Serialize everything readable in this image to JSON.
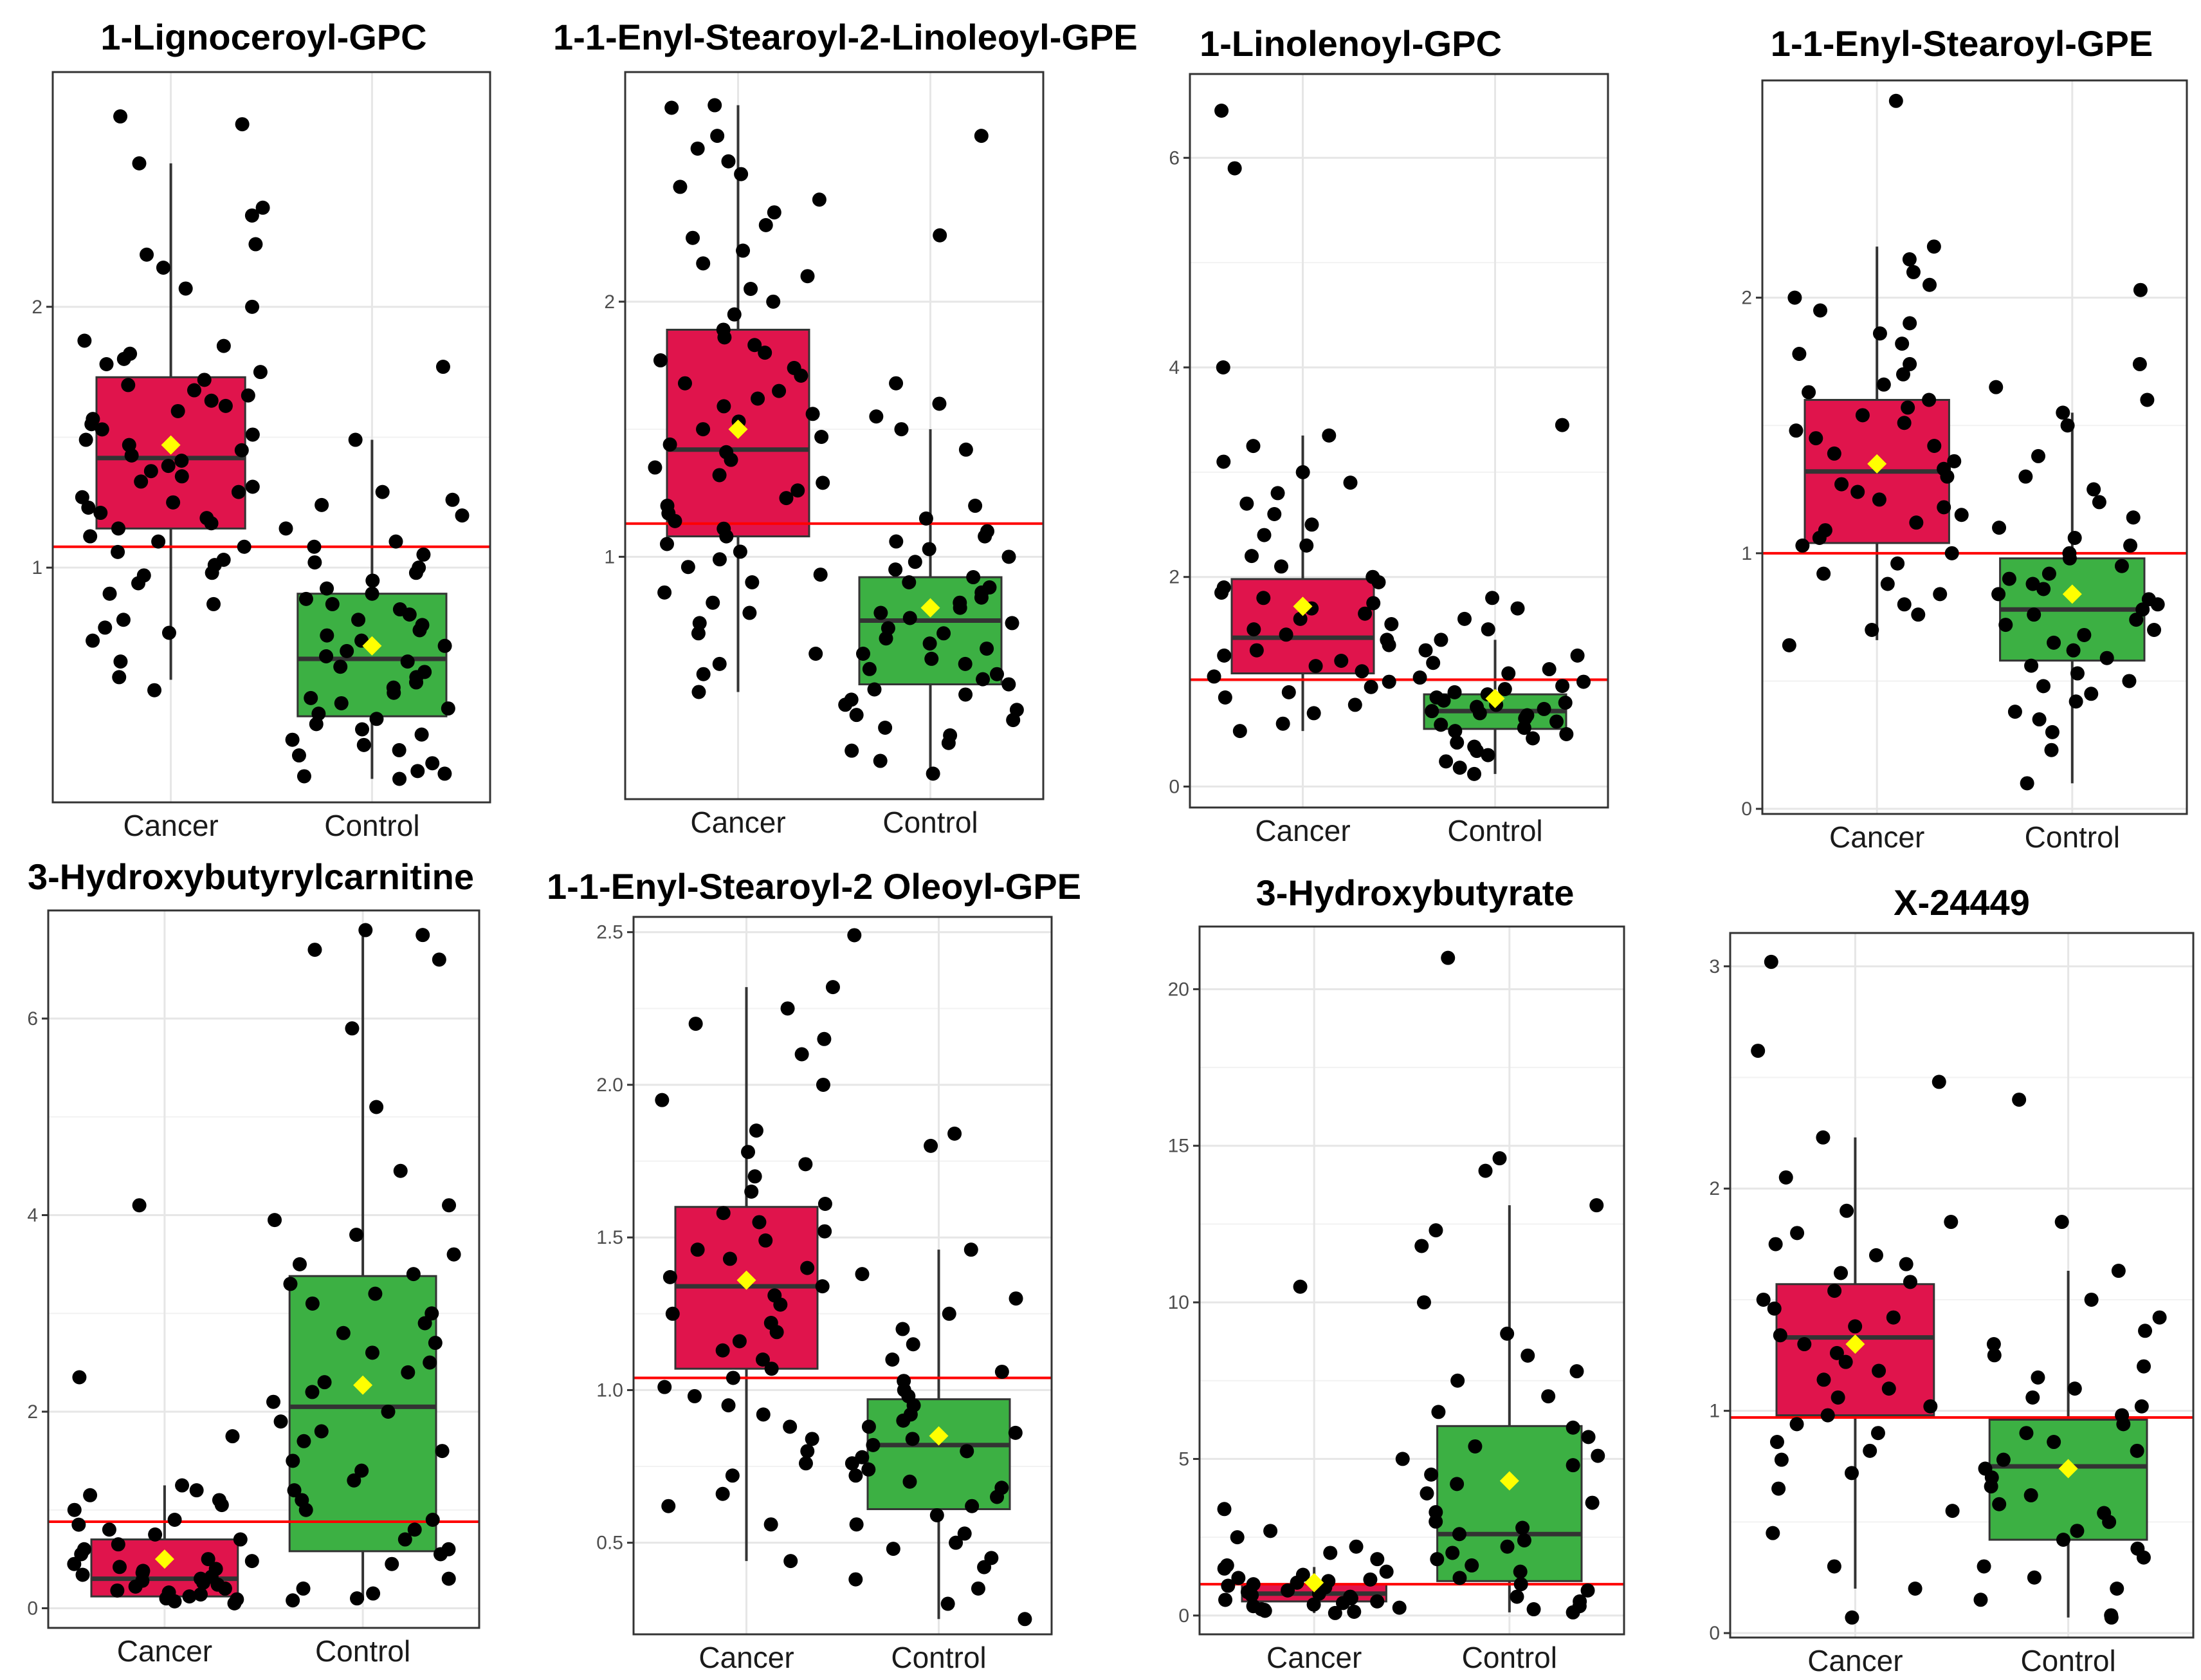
{
  "figure": {
    "background": "#ffffff"
  },
  "style": {
    "cancer_fill": "#E0144C",
    "control_fill": "#3CB043",
    "mean_color": "#FFFF00",
    "threshold_color": "#FF0000",
    "point_color": "#000000",
    "grid_color": "#E6E6E6"
  },
  "chart_data": [
    {
      "type": "box",
      "title": "1-Lignoceroyl-GPC",
      "categories": [
        "Cancer",
        "Control"
      ],
      "ylim": [
        0.1,
        2.9
      ],
      "yticks": [
        1,
        2
      ],
      "threshold": 1.08,
      "boxes": [
        {
          "group": "Cancer",
          "q1": 1.15,
          "median": 1.42,
          "q3": 1.73,
          "whisker_low": 0.57,
          "whisker_high": 2.55,
          "mean": 1.47,
          "points": [
            0.53,
            0.58,
            0.64,
            0.72,
            0.75,
            0.77,
            0.8,
            0.86,
            0.9,
            0.94,
            0.97,
            0.98,
            1.01,
            1.03,
            1.06,
            1.08,
            1.1,
            1.12,
            1.15,
            1.17,
            1.19,
            1.21,
            1.23,
            1.25,
            1.27,
            1.29,
            1.31,
            1.33,
            1.35,
            1.37,
            1.39,
            1.41,
            1.43,
            1.45,
            1.47,
            1.49,
            1.51,
            1.53,
            1.55,
            1.57,
            1.6,
            1.62,
            1.64,
            1.66,
            1.68,
            1.7,
            1.72,
            1.75,
            1.78,
            1.8,
            1.82,
            1.85,
            1.87,
            2.0,
            2.07,
            2.15,
            2.2,
            2.24,
            2.35,
            2.38,
            2.55,
            2.7,
            2.73
          ]
        },
        {
          "group": "Control",
          "q1": 0.43,
          "median": 0.65,
          "q3": 0.9,
          "whisker_low": 0.19,
          "whisker_high": 1.49,
          "mean": 0.7,
          "points": [
            0.19,
            0.2,
            0.21,
            0.22,
            0.25,
            0.28,
            0.3,
            0.32,
            0.34,
            0.36,
            0.38,
            0.4,
            0.42,
            0.44,
            0.46,
            0.48,
            0.5,
            0.52,
            0.54,
            0.56,
            0.58,
            0.6,
            0.62,
            0.64,
            0.66,
            0.68,
            0.7,
            0.72,
            0.74,
            0.76,
            0.78,
            0.8,
            0.82,
            0.84,
            0.86,
            0.88,
            0.9,
            0.92,
            0.95,
            0.98,
            1.0,
            1.02,
            1.05,
            1.08,
            1.1,
            1.15,
            1.2,
            1.24,
            1.26,
            1.29,
            1.49,
            1.77
          ]
        }
      ]
    },
    {
      "type": "box",
      "title": "1-1-Enyl-Stearoyl-2-Linoleoyl-GPE",
      "categories": [
        "Cancer",
        "Control"
      ],
      "ylim": [
        0.05,
        2.9
      ],
      "yticks": [
        1,
        2
      ],
      "threshold": 1.13,
      "boxes": [
        {
          "group": "Cancer",
          "q1": 1.08,
          "median": 1.42,
          "q3": 1.89,
          "whisker_low": 0.47,
          "whisker_high": 2.77,
          "mean": 1.5,
          "points": [
            0.47,
            0.54,
            0.58,
            0.62,
            0.7,
            0.74,
            0.78,
            0.82,
            0.86,
            0.9,
            0.93,
            0.96,
            0.99,
            1.02,
            1.05,
            1.08,
            1.11,
            1.14,
            1.17,
            1.2,
            1.23,
            1.26,
            1.29,
            1.32,
            1.35,
            1.38,
            1.41,
            1.44,
            1.47,
            1.5,
            1.53,
            1.56,
            1.59,
            1.62,
            1.65,
            1.68,
            1.71,
            1.74,
            1.77,
            1.8,
            1.83,
            1.86,
            1.89,
            1.95,
            2.0,
            2.05,
            2.1,
            2.15,
            2.2,
            2.25,
            2.3,
            2.35,
            2.4,
            2.45,
            2.5,
            2.55,
            2.6,
            2.65,
            2.76,
            2.77
          ]
        },
        {
          "group": "Control",
          "q1": 0.5,
          "median": 0.75,
          "q3": 0.92,
          "whisker_low": 0.15,
          "whisker_high": 1.5,
          "mean": 0.8,
          "points": [
            0.15,
            0.2,
            0.24,
            0.27,
            0.3,
            0.33,
            0.36,
            0.38,
            0.4,
            0.42,
            0.44,
            0.46,
            0.48,
            0.5,
            0.52,
            0.54,
            0.56,
            0.58,
            0.6,
            0.62,
            0.64,
            0.66,
            0.68,
            0.7,
            0.72,
            0.74,
            0.76,
            0.78,
            0.8,
            0.82,
            0.84,
            0.86,
            0.88,
            0.9,
            0.92,
            0.95,
            0.98,
            1.0,
            1.03,
            1.06,
            1.08,
            1.1,
            1.15,
            1.2,
            1.42,
            1.5,
            1.55,
            1.6,
            1.68,
            2.26,
            2.65
          ]
        }
      ]
    },
    {
      "type": "box",
      "title": "1-Linolenoyl-GPC",
      "categories": [
        "Cancer",
        "Control"
      ],
      "ylim": [
        -0.2,
        6.8
      ],
      "yticks": [
        0,
        2,
        4,
        6
      ],
      "threshold": 1.02,
      "boxes": [
        {
          "group": "Cancer",
          "q1": 1.08,
          "median": 1.42,
          "q3": 1.98,
          "whisker_low": 0.53,
          "whisker_high": 3.35,
          "mean": 1.72,
          "points": [
            0.53,
            0.6,
            0.7,
            0.78,
            0.85,
            0.9,
            0.95,
            1.0,
            1.05,
            1.1,
            1.15,
            1.2,
            1.25,
            1.3,
            1.35,
            1.4,
            1.45,
            1.5,
            1.55,
            1.6,
            1.65,
            1.7,
            1.75,
            1.8,
            1.85,
            1.9,
            1.95,
            2.0,
            2.1,
            2.2,
            2.3,
            2.4,
            2.5,
            2.6,
            2.7,
            2.8,
            2.9,
            3.0,
            3.1,
            3.25,
            3.35,
            4.0,
            5.9,
            6.45
          ]
        },
        {
          "group": "Control",
          "q1": 0.55,
          "median": 0.72,
          "q3": 0.88,
          "whisker_low": 0.12,
          "whisker_high": 1.4,
          "mean": 0.84,
          "points": [
            0.12,
            0.18,
            0.24,
            0.3,
            0.34,
            0.38,
            0.42,
            0.46,
            0.5,
            0.53,
            0.56,
            0.59,
            0.62,
            0.65,
            0.68,
            0.7,
            0.72,
            0.74,
            0.76,
            0.78,
            0.8,
            0.82,
            0.85,
            0.88,
            0.9,
            0.93,
            0.96,
            1.0,
            1.04,
            1.08,
            1.12,
            1.18,
            1.25,
            1.3,
            1.4,
            1.5,
            1.6,
            1.7,
            1.8,
            3.45
          ]
        }
      ]
    },
    {
      "type": "box",
      "title": "1-1-Enyl-Stearoyl-GPE",
      "categories": [
        "Cancer",
        "Control"
      ],
      "ylim": [
        -0.02,
        2.85
      ],
      "yticks": [
        0,
        1,
        2
      ],
      "threshold": 1.0,
      "boxes": [
        {
          "group": "Cancer",
          "q1": 1.04,
          "median": 1.32,
          "q3": 1.6,
          "whisker_low": 0.66,
          "whisker_high": 2.2,
          "mean": 1.35,
          "points": [
            0.64,
            0.7,
            0.76,
            0.8,
            0.84,
            0.88,
            0.92,
            0.96,
            1.0,
            1.03,
            1.06,
            1.09,
            1.12,
            1.15,
            1.18,
            1.21,
            1.24,
            1.27,
            1.3,
            1.33,
            1.36,
            1.39,
            1.42,
            1.45,
            1.48,
            1.51,
            1.54,
            1.57,
            1.6,
            1.63,
            1.66,
            1.7,
            1.74,
            1.78,
            1.82,
            1.86,
            1.9,
            1.95,
            2.0,
            2.05,
            2.1,
            2.15,
            2.2,
            2.77
          ]
        },
        {
          "group": "Control",
          "q1": 0.58,
          "median": 0.78,
          "q3": 0.98,
          "whisker_low": 0.1,
          "whisker_high": 1.55,
          "mean": 0.84,
          "points": [
            0.1,
            0.23,
            0.3,
            0.35,
            0.38,
            0.42,
            0.45,
            0.48,
            0.5,
            0.53,
            0.56,
            0.59,
            0.62,
            0.65,
            0.68,
            0.7,
            0.72,
            0.74,
            0.76,
            0.78,
            0.8,
            0.82,
            0.84,
            0.86,
            0.88,
            0.9,
            0.92,
            0.95,
            0.98,
            1.0,
            1.03,
            1.06,
            1.1,
            1.14,
            1.2,
            1.25,
            1.3,
            1.38,
            1.5,
            1.55,
            1.6,
            1.65,
            1.74,
            2.03
          ]
        }
      ]
    },
    {
      "type": "box",
      "title": "3-Hydroxybutyrylcarnitine",
      "categories": [
        "Cancer",
        "Control"
      ],
      "ylim": [
        -0.2,
        7.1
      ],
      "yticks": [
        0,
        2,
        4,
        6
      ],
      "threshold": 0.88,
      "boxes": [
        {
          "group": "Cancer",
          "q1": 0.12,
          "median": 0.3,
          "q3": 0.7,
          "whisker_low": 0.05,
          "whisker_high": 1.25,
          "mean": 0.5,
          "points": [
            0.05,
            0.07,
            0.09,
            0.1,
            0.12,
            0.14,
            0.16,
            0.18,
            0.2,
            0.22,
            0.24,
            0.26,
            0.28,
            0.3,
            0.32,
            0.34,
            0.36,
            0.38,
            0.4,
            0.42,
            0.45,
            0.48,
            0.5,
            0.55,
            0.6,
            0.65,
            0.7,
            0.75,
            0.8,
            0.85,
            0.9,
            1.0,
            1.05,
            1.1,
            1.15,
            1.2,
            1.25,
            1.75,
            2.35,
            4.1
          ]
        },
        {
          "group": "Control",
          "q1": 0.58,
          "median": 2.05,
          "q3": 3.38,
          "whisker_low": 0.08,
          "whisker_high": 6.85,
          "mean": 2.27,
          "points": [
            0.08,
            0.1,
            0.15,
            0.2,
            0.3,
            0.45,
            0.55,
            0.6,
            0.7,
            0.8,
            0.9,
            1.0,
            1.1,
            1.2,
            1.3,
            1.4,
            1.5,
            1.6,
            1.7,
            1.8,
            1.9,
            2.0,
            2.1,
            2.2,
            2.3,
            2.4,
            2.5,
            2.6,
            2.7,
            2.8,
            2.9,
            3.0,
            3.1,
            3.2,
            3.3,
            3.4,
            3.5,
            3.6,
            3.8,
            3.95,
            4.1,
            4.45,
            5.1,
            5.9,
            6.6,
            6.7,
            6.85,
            6.9
          ]
        }
      ]
    },
    {
      "type": "box",
      "title": "1-1-Enyl-Stearoyl-2 Oleoyl-GPE",
      "categories": [
        "Cancer",
        "Control"
      ],
      "ylim": [
        0.2,
        2.55
      ],
      "yticks": [
        0.5,
        1.0,
        1.5,
        2.0,
        2.5
      ],
      "threshold": 1.04,
      "boxes": [
        {
          "group": "Cancer",
          "q1": 1.07,
          "median": 1.34,
          "q3": 1.6,
          "whisker_low": 0.44,
          "whisker_high": 2.32,
          "mean": 1.36,
          "points": [
            0.44,
            0.56,
            0.62,
            0.66,
            0.72,
            0.76,
            0.8,
            0.84,
            0.88,
            0.92,
            0.95,
            0.98,
            1.01,
            1.04,
            1.07,
            1.1,
            1.13,
            1.16,
            1.19,
            1.22,
            1.25,
            1.28,
            1.31,
            1.34,
            1.37,
            1.4,
            1.43,
            1.46,
            1.49,
            1.52,
            1.55,
            1.58,
            1.61,
            1.65,
            1.7,
            1.74,
            1.78,
            1.85,
            1.95,
            2.0,
            2.1,
            2.15,
            2.2,
            2.25,
            2.32
          ]
        },
        {
          "group": "Control",
          "q1": 0.61,
          "median": 0.82,
          "q3": 0.97,
          "whisker_low": 0.25,
          "whisker_high": 1.46,
          "mean": 0.85,
          "points": [
            0.25,
            0.3,
            0.35,
            0.38,
            0.42,
            0.45,
            0.48,
            0.5,
            0.53,
            0.56,
            0.59,
            0.62,
            0.65,
            0.68,
            0.7,
            0.72,
            0.74,
            0.76,
            0.78,
            0.8,
            0.82,
            0.84,
            0.86,
            0.88,
            0.9,
            0.92,
            0.95,
            0.98,
            1.0,
            1.03,
            1.06,
            1.1,
            1.15,
            1.2,
            1.25,
            1.3,
            1.38,
            1.46,
            1.8,
            1.84,
            2.49
          ]
        }
      ]
    },
    {
      "type": "box",
      "title": "3-Hydroxybutyrate",
      "categories": [
        "Cancer",
        "Control"
      ],
      "ylim": [
        -0.6,
        22.0
      ],
      "yticks": [
        0,
        5,
        10,
        15,
        20
      ],
      "threshold": 1.0,
      "boxes": [
        {
          "group": "Cancer",
          "q1": 0.45,
          "median": 0.7,
          "q3": 1.0,
          "whisker_low": 0.08,
          "whisker_high": 1.55,
          "mean": 1.05,
          "points": [
            0.08,
            0.12,
            0.15,
            0.18,
            0.2,
            0.25,
            0.3,
            0.35,
            0.4,
            0.45,
            0.5,
            0.55,
            0.6,
            0.65,
            0.7,
            0.75,
            0.8,
            0.85,
            0.9,
            0.95,
            1.0,
            1.05,
            1.1,
            1.15,
            1.2,
            1.3,
            1.4,
            1.5,
            1.6,
            1.8,
            2.0,
            2.2,
            2.5,
            2.7,
            3.4,
            5.0,
            10.5
          ]
        },
        {
          "group": "Control",
          "q1": 1.1,
          "median": 2.6,
          "q3": 6.05,
          "whisker_low": 0.1,
          "whisker_high": 13.1,
          "mean": 4.3,
          "points": [
            0.1,
            0.2,
            0.3,
            0.45,
            0.6,
            0.8,
            1.0,
            1.2,
            1.4,
            1.6,
            1.8,
            2.0,
            2.2,
            2.4,
            2.6,
            2.8,
            3.0,
            3.3,
            3.6,
            3.9,
            4.2,
            4.5,
            4.8,
            5.1,
            5.4,
            5.7,
            6.0,
            6.5,
            7.0,
            7.5,
            7.8,
            8.3,
            9.0,
            10.0,
            11.8,
            12.3,
            13.1,
            14.2,
            14.6,
            21.0
          ]
        }
      ]
    },
    {
      "type": "box",
      "title": "X-24449",
      "categories": [
        "Cancer",
        "Control"
      ],
      "ylim": [
        -0.02,
        3.15
      ],
      "yticks": [
        0,
        1,
        2,
        3
      ],
      "threshold": 0.97,
      "boxes": [
        {
          "group": "Cancer",
          "q1": 0.98,
          "median": 1.33,
          "q3": 1.57,
          "whisker_low": 0.2,
          "whisker_high": 2.23,
          "mean": 1.3,
          "points": [
            0.07,
            0.2,
            0.3,
            0.45,
            0.55,
            0.65,
            0.72,
            0.78,
            0.82,
            0.86,
            0.9,
            0.94,
            0.98,
            1.02,
            1.06,
            1.1,
            1.14,
            1.18,
            1.22,
            1.26,
            1.3,
            1.34,
            1.38,
            1.42,
            1.46,
            1.5,
            1.54,
            1.58,
            1.62,
            1.66,
            1.7,
            1.75,
            1.8,
            1.85,
            1.9,
            2.05,
            2.23,
            2.48,
            2.62,
            3.02
          ]
        },
        {
          "group": "Control",
          "q1": 0.42,
          "median": 0.75,
          "q3": 0.96,
          "whisker_low": 0.07,
          "whisker_high": 1.63,
          "mean": 0.74,
          "points": [
            0.07,
            0.08,
            0.15,
            0.2,
            0.25,
            0.3,
            0.34,
            0.38,
            0.42,
            0.46,
            0.5,
            0.54,
            0.58,
            0.62,
            0.66,
            0.7,
            0.74,
            0.78,
            0.82,
            0.86,
            0.9,
            0.94,
            0.98,
            1.02,
            1.06,
            1.1,
            1.15,
            1.2,
            1.25,
            1.3,
            1.36,
            1.42,
            1.5,
            1.63,
            1.85,
            2.4
          ]
        }
      ]
    }
  ]
}
